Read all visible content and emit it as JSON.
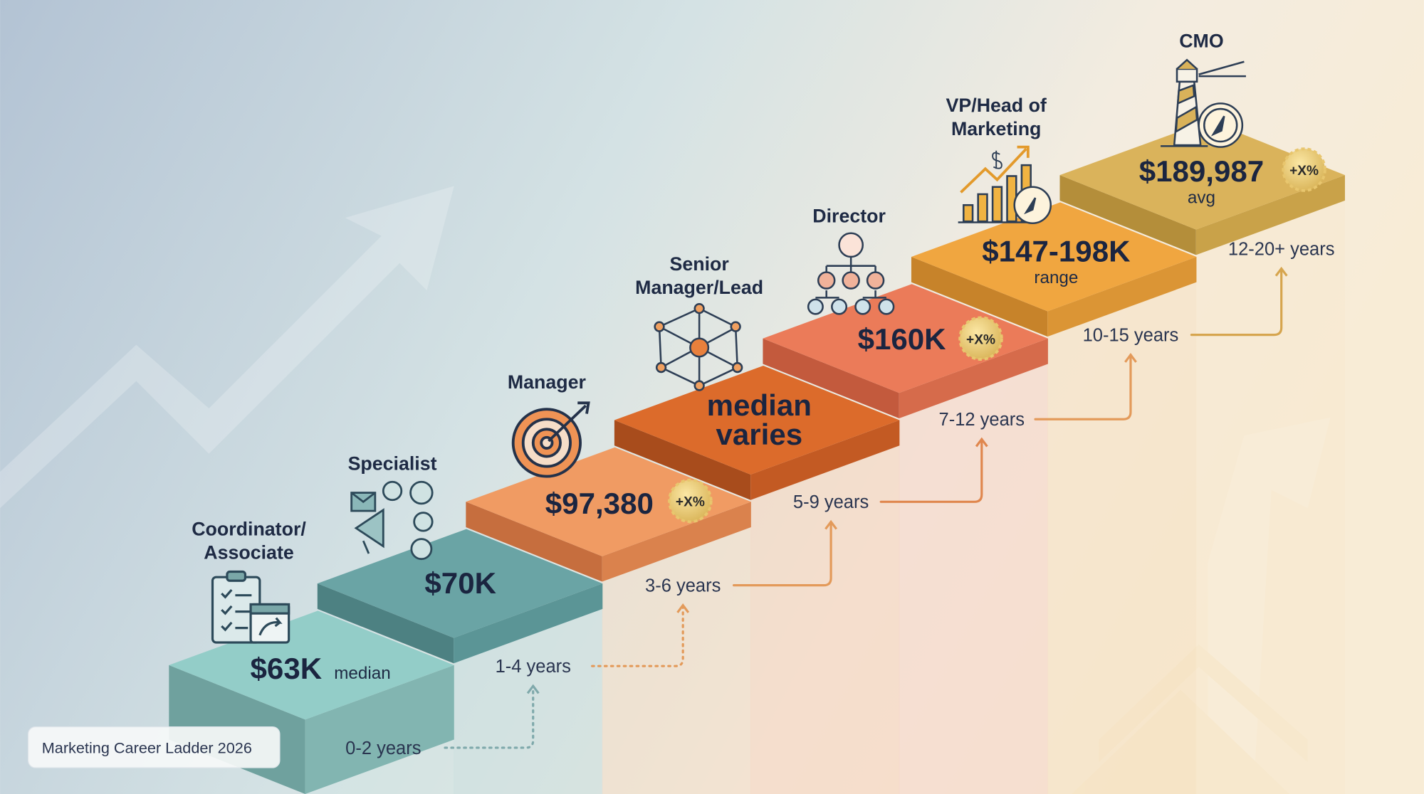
{
  "footer_label": "Marketing Career Ladder 2026",
  "steps": [
    {
      "title": [
        "Coordinator/",
        "Associate"
      ],
      "salary": "$63K",
      "note": "median",
      "badge": "",
      "years": "0-2 years",
      "icon": "clipboard-calendar-icon",
      "colors": {
        "top": "#93cdc8",
        "left": "#6fa19e",
        "right": "#82b5b1"
      }
    },
    {
      "title": [
        "Specialist"
      ],
      "salary": "$70K",
      "note": "",
      "badge": "",
      "years": "1-4 years",
      "icon": "megaphone-social-icon",
      "colors": {
        "top": "#6aa4a5",
        "left": "#4d8182",
        "right": "#5b9596"
      }
    },
    {
      "title": [
        "Manager"
      ],
      "salary": "$97,380",
      "note": "",
      "badge": "+X%",
      "years": "3-6 years",
      "icon": "target-icon",
      "colors": {
        "top": "#f09b63",
        "left": "#c66e3e",
        "right": "#da824d"
      }
    },
    {
      "title": [
        "Senior",
        "Manager/Lead"
      ],
      "salary": [
        "median",
        "varies"
      ],
      "note": "",
      "badge": "",
      "years": "5-9 years",
      "icon": "network-icon",
      "colors": {
        "top": "#dc6b2b",
        "left": "#a84c1c",
        "right": "#c35a23"
      }
    },
    {
      "title": [
        "Director"
      ],
      "salary": "$160K",
      "note": "",
      "badge": "+X%",
      "years": "7-12 years",
      "icon": "org-chart-icon",
      "colors": {
        "top": "#eb7b59",
        "left": "#c35a3d",
        "right": "#d66b4b"
      }
    },
    {
      "title": [
        "VP/Head of",
        "Marketing"
      ],
      "salary": "$147-198K",
      "note": "range",
      "badge": "",
      "years": "10-15 years",
      "icon": "growth-chart-compass-icon",
      "colors": {
        "top": "#f0a640",
        "left": "#c7832a",
        "right": "#db9535"
      }
    },
    {
      "title": [
        "CMO"
      ],
      "salary": "$189,987",
      "note": "avg",
      "badge": "+X%",
      "years": "12-20+ years",
      "icon": "lighthouse-compass-icon",
      "colors": {
        "top": "#dab35b",
        "left": "#b48e3a",
        "right": "#c9a249"
      }
    }
  ],
  "connector_colors": [
    "#7fa9ab",
    "#e39a5a",
    "#e39a5a",
    "#e0874e",
    "#e39a5a",
    "#d6a54e"
  ]
}
